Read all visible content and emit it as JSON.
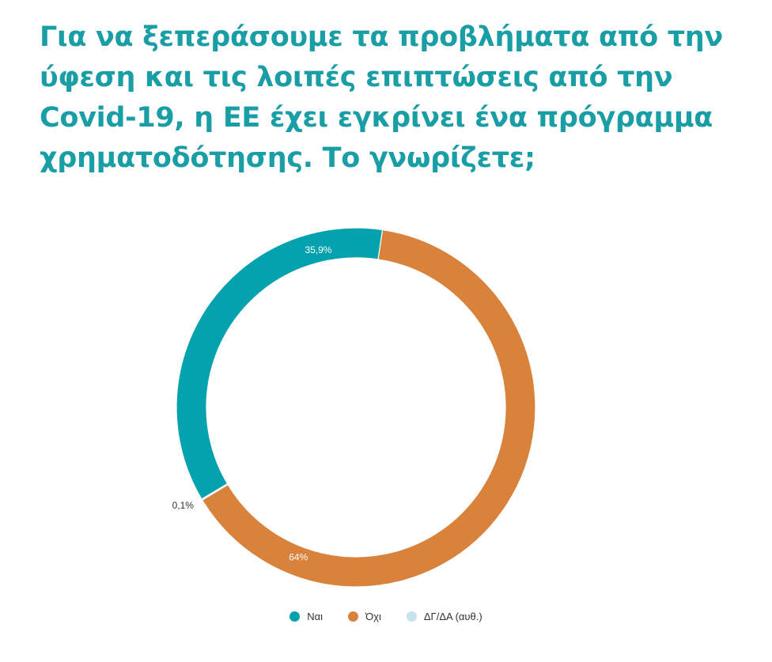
{
  "title": "Για να ξεπεράσουμε τα προβλήματα από την ύφεση και τις λοιπές επιπτώσεις από την Covid-19, η ΕΕ έχει εγκρίνει ένα πρόγραμμα χρηματοδότησης. Το γνωρίζετε;",
  "colors": {
    "title": "#1a9ea6",
    "label_inside": "#ffffff",
    "label_outside": "#333333"
  },
  "chart_data": {
    "type": "pie",
    "style": "donut",
    "title": "Για να ξεπεράσουμε τα προβλήματα από την ύφεση και τις λοιπές επιπτώσεις από την Covid-19, η ΕΕ έχει εγκρίνει ένα πρόγραμμα χρηματοδότησης. Το γνωρίζετε;",
    "start_angle_deg": 8.5,
    "direction": "clockwise",
    "legend_position": "bottom",
    "slices": [
      {
        "label": "Όχι",
        "value": 64.0,
        "display": "64%",
        "color": "#d9823b",
        "label_position": "inside"
      },
      {
        "label": "ΔΓ/ΔΑ (αυθ.)",
        "value": 0.1,
        "display": "0,1%",
        "color": "#c4e3ea",
        "label_position": "outside"
      },
      {
        "label": "Ναι",
        "value": 35.9,
        "display": "35,9%",
        "color": "#04a2ae",
        "label_position": "inside"
      }
    ],
    "legend": [
      {
        "label": "Ναι",
        "color": "#04a2ae"
      },
      {
        "label": "Όχι",
        "color": "#d9823b"
      },
      {
        "label": "ΔΓ/ΔΑ (αυθ.)",
        "color": "#c4e3ea"
      }
    ]
  }
}
